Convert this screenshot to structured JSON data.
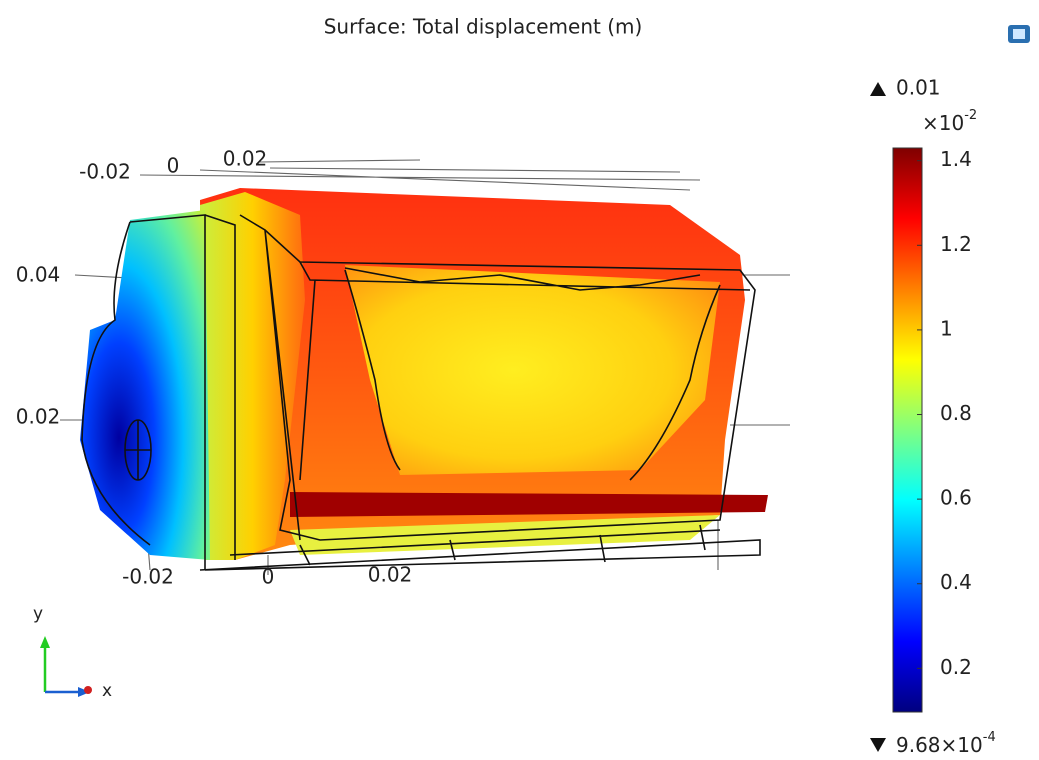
{
  "chart_data": {
    "type": "surface",
    "title": "Surface: Total displacement (m)",
    "top_axis_ticks": [
      -0.02,
      0,
      0.02
    ],
    "y_axis_ticks": [
      0.04,
      0.02
    ],
    "x_axis_ticks": [
      -0.02,
      0,
      0.02
    ],
    "triad_labels": [
      "y",
      "x"
    ],
    "colorbar": {
      "max_label": "0.01",
      "multiplier": {
        "base": "×10",
        "exponent": "-2"
      },
      "min_label": {
        "mantissa": "9.68×10",
        "exponent": "-4"
      },
      "clim": [
        0.0968,
        1.43
      ],
      "ticks": [
        0.2,
        0.4,
        0.6,
        0.8,
        1,
        1.2,
        1.4
      ],
      "colormap": [
        "#00007f",
        "#0000ff",
        "#0080ff",
        "#00ffff",
        "#80ff80",
        "#ffff00",
        "#ff8000",
        "#ff0000",
        "#7f0000"
      ]
    }
  }
}
